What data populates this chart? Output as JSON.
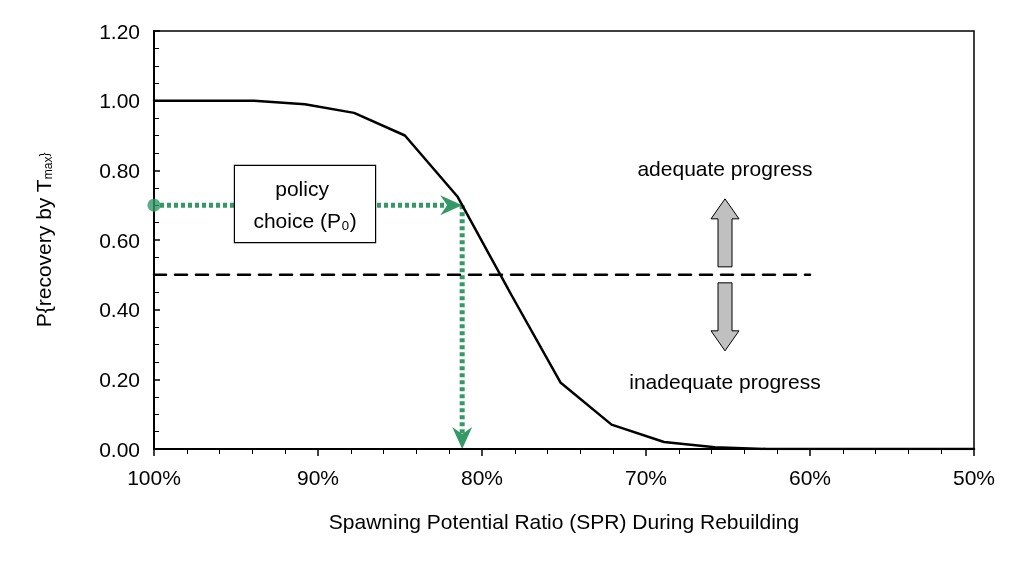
{
  "chart_data": {
    "type": "line",
    "xlabel": "Spawning Potential Ratio (SPR) During Rebuilding",
    "ylabel": "P{recovery by T$_{max}$}",
    "xlim": [
      100,
      50
    ],
    "xticks": [
      {
        "value": 100,
        "label": "100%"
      },
      {
        "value": 90,
        "label": "90%"
      },
      {
        "value": 80,
        "label": "80%"
      },
      {
        "value": 70,
        "label": "70%"
      },
      {
        "value": 60,
        "label": "60%"
      },
      {
        "value": 50,
        "label": "50%"
      }
    ],
    "ylim": [
      0,
      1.2
    ],
    "yticks": [
      {
        "value": 0,
        "label": "0.00"
      },
      {
        "value": 0.2,
        "label": "0.20"
      },
      {
        "value": 0.4,
        "label": "0.40"
      },
      {
        "value": 0.6,
        "label": "0.60"
      },
      {
        "value": 0.8,
        "label": "0.80"
      },
      {
        "value": 1,
        "label": "1.00"
      },
      {
        "value": 1.2,
        "label": "1.20"
      }
    ],
    "grid": false,
    "marker": "none",
    "series": [
      {
        "color": "#000000",
        "line_style": "solid",
        "x": [
          100,
          93.9,
          90.8,
          87.8,
          84.7,
          81.5,
          78.3,
          75.2,
          72.1,
          68.9,
          65.8,
          62.6,
          50
        ],
        "values": [
          1.0,
          1.0,
          0.99,
          0.965,
          0.9,
          0.725,
          0.45,
          0.19,
          0.07,
          0.02,
          0.005,
          0,
          0
        ]
      },
      {
        "color": "#000000",
        "line_style": "dashed",
        "x": [
          100,
          60
        ],
        "values": [
          0.5,
          0.5
        ]
      },
      {
        "type": "scatter",
        "color": "#339966",
        "marker": "circle",
        "x": [
          100
        ],
        "values": [
          0.7
        ]
      }
    ],
    "annotations": [
      "policy choice (P₀)",
      "adequate progress",
      "inadequate progress"
    ]
  }
}
